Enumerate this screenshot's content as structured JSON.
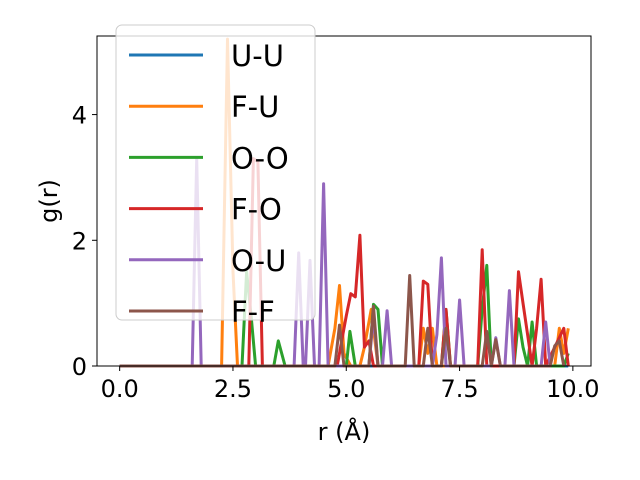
{
  "chart_data": {
    "type": "line",
    "xlabel": "r (Å)",
    "ylabel": "g(r)",
    "xlim": [
      -0.5,
      10.4
    ],
    "ylim": [
      0,
      5.25
    ],
    "xticks": [
      "0.0",
      "2.5",
      "5.0",
      "7.5",
      "10.0"
    ],
    "xtick_values": [
      0,
      2.5,
      5,
      7.5,
      10
    ],
    "yticks": [
      "0",
      "2",
      "4"
    ],
    "ytick_values": [
      0,
      2,
      4
    ],
    "legend_position": "upper-left",
    "grid": false,
    "series": [
      {
        "name": "U-U",
        "color": "#1f77b4",
        "x": [
          0,
          9.9
        ],
        "y": [
          0,
          0
        ]
      },
      {
        "name": "F-U",
        "color": "#ff7f0e",
        "x": [
          0,
          2.25,
          2.38,
          2.5,
          2.6,
          4.6,
          4.75,
          4.85,
          4.95,
          5.1,
          5.3,
          5.4,
          5.55,
          5.7,
          6.6,
          6.7,
          6.8,
          6.9,
          7.0,
          9.6,
          9.7,
          9.8,
          9.9
        ],
        "y": [
          0,
          0,
          5.2,
          1.5,
          0,
          0,
          0.6,
          1.28,
          0.2,
          0,
          0,
          0.3,
          0.9,
          0,
          0,
          0.6,
          0.2,
          0.6,
          0,
          0,
          0.6,
          0.2,
          0.6
        ]
      },
      {
        "name": "O-O",
        "color": "#2ca02c",
        "x": [
          0,
          2.7,
          2.8,
          2.9,
          3.0,
          3.4,
          3.5,
          3.65,
          5.0,
          5.08,
          5.2,
          5.5,
          5.6,
          5.7,
          5.8,
          7.1,
          7.2,
          7.3,
          7.9,
          8.0,
          8.1,
          8.2,
          8.7,
          8.8,
          8.9,
          9.0,
          9.1,
          9.2,
          9.8,
          9.9
        ],
        "y": [
          0,
          0,
          1.5,
          0.8,
          0,
          0,
          0.4,
          0,
          0,
          0.55,
          0,
          0,
          0.98,
          0.9,
          0,
          0,
          0.9,
          0,
          0,
          0.9,
          1.6,
          0,
          0,
          0.75,
          0.3,
          0,
          0.7,
          0,
          0,
          0.2
        ]
      },
      {
        "name": "F-O",
        "color": "#d62728",
        "x": [
          0,
          2.85,
          2.95,
          3.05,
          3.15,
          4.8,
          4.9,
          5.0,
          5.1,
          5.2,
          5.3,
          5.4,
          5.5,
          5.6,
          6.6,
          6.7,
          6.8,
          6.9,
          7.1,
          7.2,
          7.3,
          7.9,
          8.0,
          8.1,
          8.7,
          8.8,
          8.9,
          9.0,
          9.1,
          9.2,
          9.3,
          9.4,
          9.8,
          9.9
        ],
        "y": [
          0,
          0,
          3.3,
          3.25,
          0,
          0,
          0.4,
          0.8,
          1.15,
          1.1,
          2.08,
          0.3,
          0.4,
          0,
          0,
          1.35,
          1.3,
          0,
          0,
          0.9,
          0,
          0,
          1.85,
          0,
          0,
          1.5,
          1.0,
          0.5,
          0,
          0.6,
          1.38,
          0,
          0.6,
          0
        ]
      },
      {
        "name": "O-U",
        "color": "#9467bd",
        "x": [
          0,
          1.6,
          1.7,
          1.8,
          3.85,
          3.95,
          4.05,
          4.1,
          4.2,
          4.3,
          4.4,
          4.5,
          4.6,
          5.5,
          5.6,
          5.7,
          5.8,
          5.9,
          6.0,
          6.9,
          7.0,
          7.1,
          7.2,
          7.3,
          7.4,
          7.5,
          7.6,
          8.2,
          8.3,
          8.4,
          8.5,
          8.6,
          8.7,
          8.8,
          9.3,
          9.4,
          9.5
        ],
        "y": [
          0,
          0,
          3.3,
          0,
          0,
          1.8,
          0,
          0,
          1.68,
          0,
          0,
          2.9,
          0,
          0,
          0.8,
          0,
          0,
          0.88,
          0,
          0,
          0.5,
          1.72,
          0,
          0,
          0,
          1.05,
          0,
          0,
          0.45,
          0,
          0,
          1.2,
          0,
          0,
          0,
          0.7,
          0
        ]
      },
      {
        "name": "F-F",
        "color": "#8c564b",
        "x": [
          0,
          4.75,
          4.85,
          4.95,
          5.5,
          5.6,
          5.7,
          6.3,
          6.4,
          6.5,
          6.7,
          6.8,
          6.9,
          7.1,
          7.2,
          7.3,
          8.0,
          8.1,
          8.2,
          8.3,
          8.4,
          9.5,
          9.6,
          9.7,
          9.8
        ],
        "y": [
          0,
          0,
          0.65,
          0,
          0,
          0.95,
          0,
          0,
          1.44,
          0,
          0,
          0.6,
          0,
          0,
          0.6,
          0,
          0,
          0.55,
          0,
          0.42,
          0,
          0,
          0.32,
          0.4,
          0
        ]
      }
    ]
  }
}
